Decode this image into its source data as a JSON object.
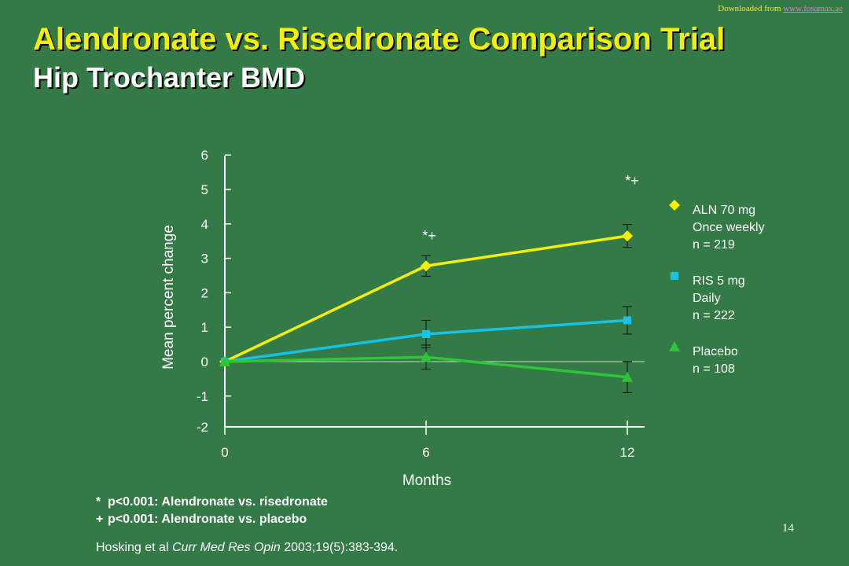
{
  "header": {
    "download_prefix": "Downloaded from ",
    "download_link": "www.fosamax.ae",
    "title_line1": "Alendronate vs. Risedronate Comparison Trial",
    "title_line2": "Hip Trochanter BMD"
  },
  "footer": {
    "note_star_symbol": "*",
    "note_star": "p<0.001: Alendronate vs. risedronate",
    "note_plus_symbol": "+",
    "note_plus": "p<0.001: Alendronate vs. placebo",
    "citation_authors": "Hosking et al ",
    "citation_journal": "Curr Med Res Opin",
    "citation_rest": " 2003;19(5):383-394.",
    "page_number": "14"
  },
  "chart_data": {
    "type": "line",
    "xlabel": "Months",
    "ylabel": "Mean percent change",
    "x": [
      0,
      6,
      12
    ],
    "x_ticks": [
      "0",
      "6",
      "12"
    ],
    "y_ticks": [
      "6",
      "5",
      "4",
      "3",
      "2",
      "1",
      "0",
      "-1",
      "-2"
    ],
    "ylim": [
      -2,
      6
    ],
    "series": [
      {
        "name": "ALN 70 mg Once weekly n = 219",
        "legend_lines": [
          "ALN 70 mg",
          "Once weekly",
          "n = 219"
        ],
        "marker": "diamond",
        "color": "#f6f000",
        "values": [
          0,
          2.78,
          3.65
        ],
        "error": [
          0,
          0.3,
          0.33
        ]
      },
      {
        "name": "RIS 5 mg Daily n = 222",
        "legend_lines": [
          "RIS 5 mg",
          "Daily",
          "n = 222"
        ],
        "marker": "square",
        "color": "#16c3e6",
        "values": [
          0,
          0.8,
          1.2
        ],
        "error": [
          0,
          0.4,
          0.4
        ]
      },
      {
        "name": "Placebo n = 108",
        "legend_lines": [
          "Placebo",
          "n = 108"
        ],
        "marker": "triangle",
        "color": "#2fc43a",
        "values": [
          0,
          0.13,
          -0.45
        ],
        "error": [
          0,
          0.35,
          0.45
        ]
      }
    ],
    "annotations": [
      {
        "x": 6,
        "text": "*+"
      },
      {
        "x": 12,
        "text": "*+"
      }
    ],
    "legend_position": "right"
  }
}
